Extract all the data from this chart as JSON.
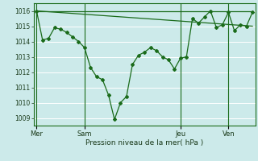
{
  "background_color": "#cceaea",
  "grid_color": "#b0d8d8",
  "line_color": "#1a6b1a",
  "xlabel": "Pression niveau de la mer( hPa )",
  "ylim": [
    1008.5,
    1016.5
  ],
  "yticks": [
    1009,
    1010,
    1011,
    1012,
    1013,
    1014,
    1015,
    1016
  ],
  "day_labels": [
    "Mer",
    "Sam",
    "Jeu",
    "Ven"
  ],
  "day_positions": [
    0,
    8,
    24,
    32
  ],
  "xlim": [
    -0.5,
    36.5
  ],
  "main_series": {
    "x": [
      0,
      1,
      2,
      3,
      4,
      5,
      6,
      7,
      8,
      9,
      10,
      11,
      12,
      13,
      14,
      15,
      16,
      17,
      18,
      19,
      20,
      21,
      22,
      23,
      24,
      25,
      26,
      27,
      28,
      29,
      30,
      31,
      32,
      33,
      34,
      35,
      36
    ],
    "y": [
      1016.0,
      1014.1,
      1014.2,
      1014.9,
      1014.8,
      1014.6,
      1014.3,
      1014.0,
      1013.6,
      1012.3,
      1011.7,
      1011.5,
      1010.5,
      1008.9,
      1010.0,
      1010.4,
      1012.5,
      1013.1,
      1013.3,
      1013.6,
      1013.4,
      1013.0,
      1012.8,
      1012.2,
      1012.9,
      1013.0,
      1015.5,
      1015.2,
      1015.6,
      1016.0,
      1014.9,
      1015.1,
      1015.9,
      1014.7,
      1015.1,
      1015.0,
      1015.9
    ]
  },
  "forecast_lines": [
    {
      "x": [
        0,
        36
      ],
      "y": [
        1016.0,
        1015.0
      ]
    },
    {
      "x": [
        0,
        36
      ],
      "y": [
        1016.0,
        1016.0
      ]
    }
  ],
  "vlines": [
    0,
    8,
    24,
    32
  ]
}
